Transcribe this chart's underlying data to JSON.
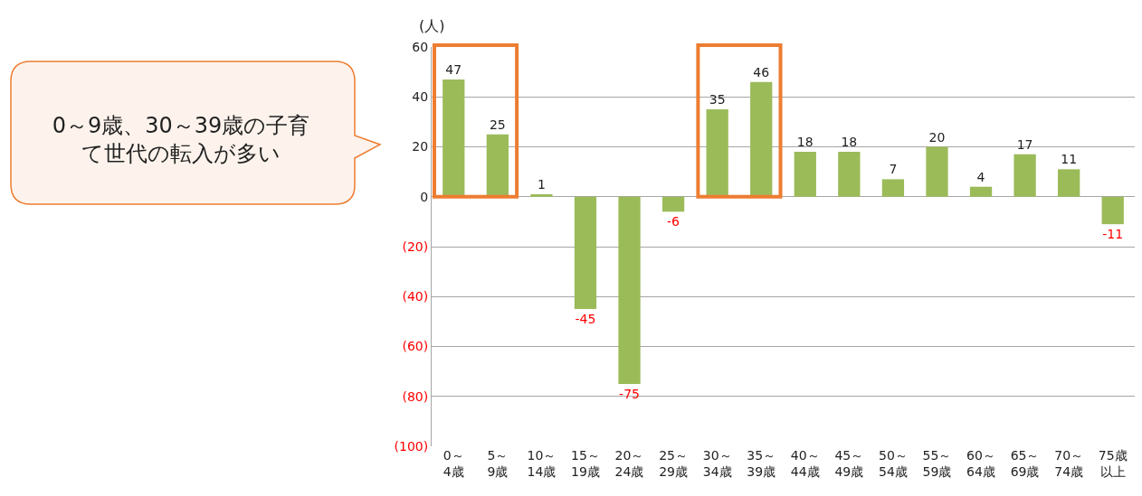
{
  "chart_data": {
    "type": "bar",
    "ylabel": "(人)",
    "categories": [
      "0～4歳",
      "5～9歳",
      "10～14歳",
      "15～19歳",
      "20～24歳",
      "25～29歳",
      "30～34歳",
      "35～39歳",
      "40～44歳",
      "45～49歳",
      "50～54歳",
      "55～59歳",
      "60～64歳",
      "65～69歳",
      "70～74歳",
      "75歳以上"
    ],
    "values": [
      47,
      25,
      1,
      -45,
      -75,
      -6,
      35,
      46,
      18,
      18,
      7,
      20,
      4,
      17,
      11,
      -11
    ],
    "color": "#9bbb59",
    "ylim": [
      -100,
      60
    ],
    "yticks": [
      60,
      40,
      20,
      0,
      {
        "value": -20,
        "label": "(20)"
      },
      {
        "value": -40,
        "label": "(40)"
      },
      {
        "value": -60,
        "label": "(60)"
      },
      {
        "value": -80,
        "label": "(80)"
      },
      {
        "value": -100,
        "label": "(100)"
      }
    ],
    "grid": "y",
    "legend": false,
    "data_labels": true,
    "annotations": [
      "0～9歳、30～39歳の子育て世代の転入が多い"
    ]
  }
}
